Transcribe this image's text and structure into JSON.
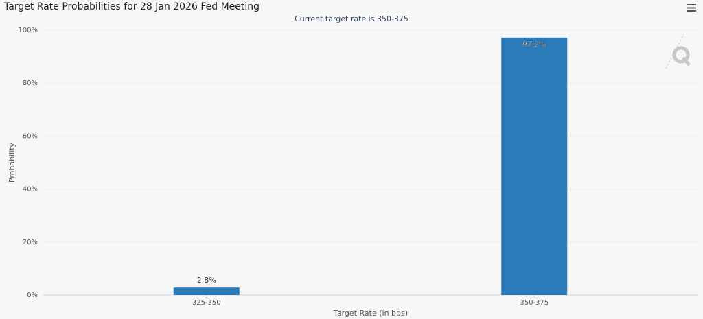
{
  "chart_data": {
    "type": "bar",
    "title": "Target Rate Probabilities for 28 Jan 2026 Fed Meeting",
    "subtitle": "Current target rate is 350-375",
    "x_label": "Target Rate (in bps)",
    "y_label": "Probability",
    "categories": [
      "325-350",
      "350-375"
    ],
    "values": [
      2.8,
      97.2
    ],
    "value_labels": [
      "2.8%",
      "97.2%"
    ],
    "color": "#2b7bb9",
    "ylim": [
      0,
      100
    ],
    "yticks": [
      {
        "value": 0,
        "label": "0%"
      },
      {
        "value": 20,
        "label": "20%"
      },
      {
        "value": 40,
        "label": "40%"
      },
      {
        "value": 60,
        "label": "60%"
      },
      {
        "value": 80,
        "label": "80%"
      },
      {
        "value": 100,
        "label": "100%"
      }
    ],
    "grid": true
  }
}
